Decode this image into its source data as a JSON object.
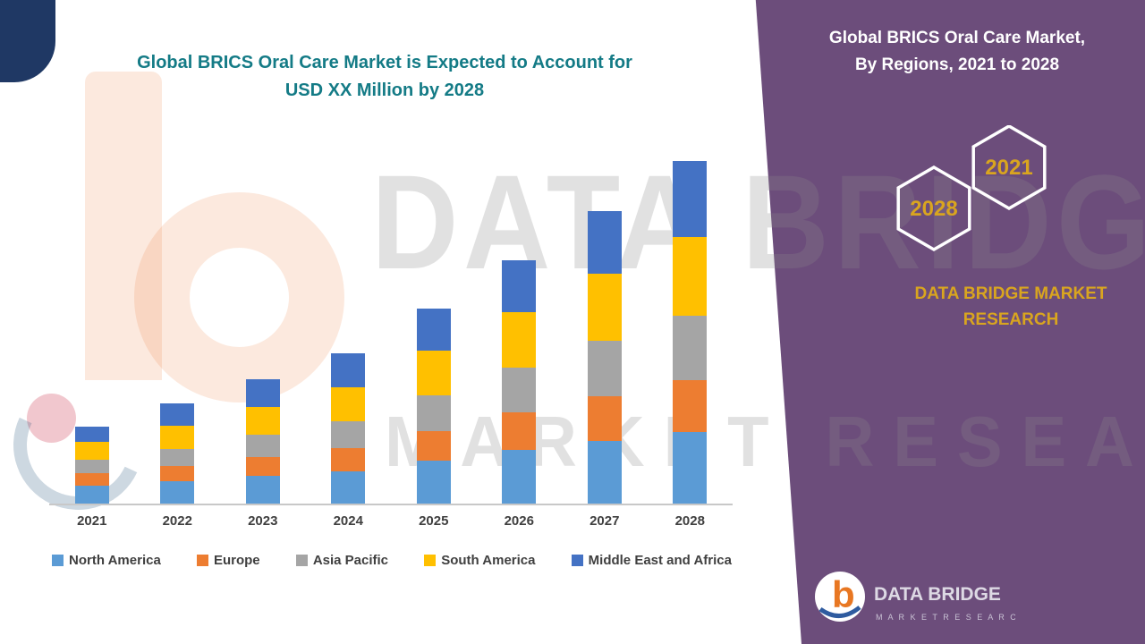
{
  "left_chart": {
    "title_line1": "Global BRICS Oral Care Market is Expected to Account for",
    "title_line2": "USD XX Million by 2028",
    "title_color": "#147B86"
  },
  "right_panel": {
    "title_line1": "Global BRICS Oral Care Market,",
    "title_line2": "By Regions, 2021 to 2028",
    "hex_left_label": "2028",
    "hex_right_label": "2021",
    "brand_line1": "DATA BRIDGE MARKET",
    "brand_line2": "RESEARCH",
    "panel_color": "#6C4D7B",
    "accent_gold": "#D9A51F"
  },
  "watermark": {
    "line1": "DATA BRIDGE",
    "line2": "MARKET RESEARCH"
  },
  "footer_logo": {
    "monogram": "b",
    "brand": "DATA BRIDGE",
    "tagline": "M A R K E T   R E S E A R C H"
  },
  "chart_data": {
    "type": "bar",
    "stacked": true,
    "title": "Global BRICS Oral Care Market is Expected to Account for USD XX Million by 2028",
    "xlabel": "",
    "ylabel": "",
    "units": "USD XX Million (values not labeled in figure; relative heights estimated in px units)",
    "grid": false,
    "legend_position": "bottom",
    "categories": [
      "2021",
      "2022",
      "2023",
      "2024",
      "2025",
      "2026",
      "2027",
      "2028"
    ],
    "series": [
      {
        "name": "North America",
        "color": "#5B9BD5",
        "values": [
          20,
          25,
          31,
          36,
          48,
          60,
          70,
          80
        ]
      },
      {
        "name": "Europe",
        "color": "#ED7D31",
        "values": [
          14,
          17,
          21,
          26,
          33,
          42,
          50,
          58
        ]
      },
      {
        "name": "Asia Pacific",
        "color": "#A5A5A5",
        "values": [
          15,
          19,
          25,
          30,
          40,
          50,
          62,
          72
        ]
      },
      {
        "name": "South America",
        "color": "#FFC000",
        "values": [
          20,
          26,
          31,
          38,
          50,
          62,
          75,
          88
        ]
      },
      {
        "name": "Middle East and Africa",
        "color": "#4472C4",
        "values": [
          17,
          25,
          31,
          38,
          47,
          58,
          70,
          85
        ]
      }
    ]
  }
}
